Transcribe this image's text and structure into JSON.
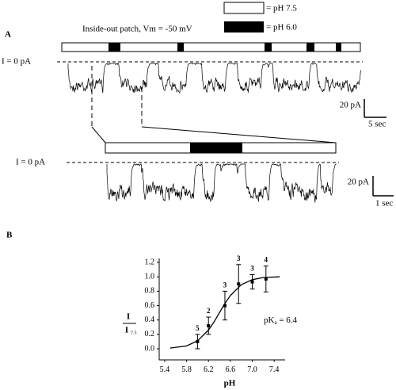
{
  "panel_a": {
    "label": "A",
    "protocol": "Inside-out patch, Vm = -50 mV",
    "legend_white": "= pH 7.5",
    "legend_black": "= pH 6.0",
    "zero_label_top": "I = 0 pA",
    "zero_label_bottom": "I = 0 pA",
    "scale_top_current": "20 pA",
    "scale_top_time": "5 sec",
    "scale_bottom_current": "20 pA",
    "scale_bottom_time": "1 sec"
  },
  "chart_data": {
    "type": "errorbar",
    "panel_label": "B",
    "xlabel": "pH",
    "ylabel_numerator": "I",
    "ylabel_denominator": "I",
    "ylabel_subscript": "7.5",
    "annotation": {
      "text": "pK",
      "subscript": "a",
      "rest": " = 6.4"
    },
    "xlim": [
      5.3,
      7.6
    ],
    "ylim": [
      -0.15,
      1.25
    ],
    "xticks": [
      5.4,
      5.8,
      6.2,
      6.6,
      {
        "value": 7.0,
        "label": "7.0"
      },
      7.4
    ],
    "yticks": [
      {
        "value": 0,
        "label": "0.0"
      },
      0.2,
      0.4,
      0.6,
      0.8,
      {
        "value": 1.0,
        "label": "1.0"
      },
      1.2
    ],
    "series": [
      {
        "x": [
          6.0,
          6.2,
          6.5,
          6.75,
          7.0,
          7.25
        ],
        "values": [
          0.1,
          0.32,
          0.6,
          0.9,
          0.93,
          0.97
        ],
        "errors": [
          0.1,
          0.12,
          0.2,
          0.27,
          0.1,
          0.18
        ],
        "n": [
          5,
          2,
          3,
          3,
          3,
          4
        ],
        "color": "#000000"
      }
    ],
    "fit": {
      "x": [
        5.5,
        5.8,
        6.0,
        6.2,
        6.3,
        6.4,
        6.5,
        6.6,
        6.8,
        7.0,
        7.2,
        7.5
      ],
      "values": [
        0.01,
        0.04,
        0.11,
        0.26,
        0.37,
        0.5,
        0.63,
        0.74,
        0.89,
        0.96,
        0.99,
        1.0
      ]
    }
  }
}
